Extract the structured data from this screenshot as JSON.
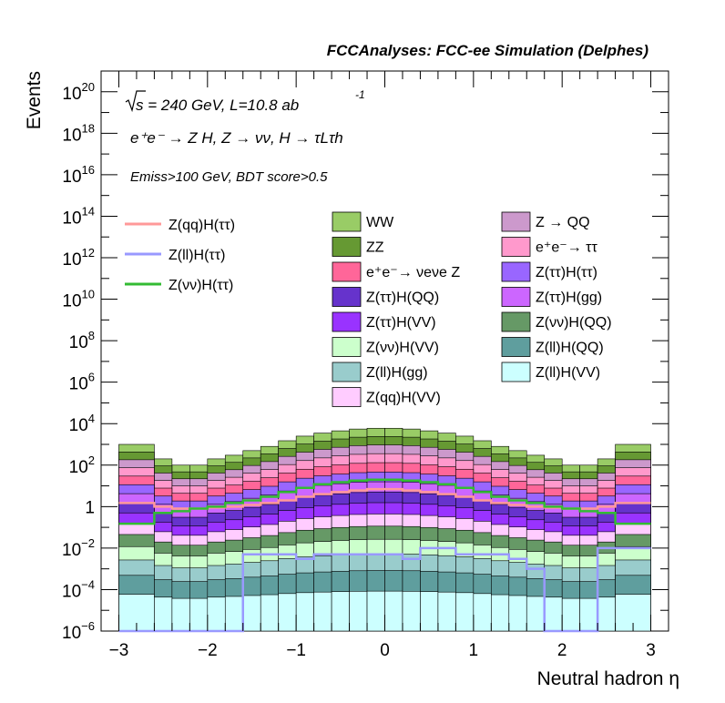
{
  "header": {
    "title": "FCCAnalyses: FCC-ee Simulation (Delphes)"
  },
  "annotations": {
    "sqrt_s": "s = 240 GeV, L=10.8 ab",
    "lumi_exp": "-1",
    "process": "e⁺e⁻ → Z H, Z → νν, H → τLτh",
    "selection": "Emiss>100 GeV, BDT score>0.5"
  },
  "chart_data": {
    "type": "histogram-stacked-log",
    "xlabel": "Neutral hadron η",
    "ylabel": "Events",
    "xlim": [
      -3.2,
      3.2
    ],
    "ylim": [
      1e-06,
      1e+21
    ],
    "log_y": true,
    "bin_edges": [
      -3.0,
      -2.6,
      -2.4,
      -2.2,
      -2.0,
      -1.8,
      -1.6,
      -1.4,
      -1.2,
      -1.0,
      -0.8,
      -0.6,
      -0.4,
      -0.2,
      0.0,
      0.2,
      0.4,
      0.6,
      0.8,
      1.0,
      1.2,
      1.4,
      1.6,
      1.8,
      2.0,
      2.2,
      2.4,
      2.6,
      3.0
    ],
    "x_ticks": [
      -3,
      -2,
      -1,
      0,
      1,
      2,
      3
    ],
    "y_tick_labels": [
      "10^-6",
      "10^-4",
      "10^-2",
      "1",
      "10^2",
      "10^4",
      "10^6",
      "10^8",
      "10^10",
      "10^12",
      "10^14",
      "10^16",
      "10^18",
      "10^20"
    ],
    "stack_bottom_to_top": [
      {
        "name": "Z(ll)H(VV)",
        "color": "#ccffff",
        "approx_level": 1e-06,
        "bin_totals": [
          0.01,
          0.01,
          0.01,
          0.01,
          0.01,
          0.01,
          0.01,
          0.01,
          0.01,
          0.01,
          0.01,
          0.01,
          0.01,
          0.01,
          0.01,
          0.01,
          0.01,
          0.01,
          0.01,
          0.01,
          0.01,
          0.01,
          0.01,
          0.01,
          0.01,
          0.01,
          0.01,
          0.01
        ]
      },
      {
        "name": "Z(ll)H(QQ)",
        "color": "#5f9e9e",
        "approx_level": 1e-06
      },
      {
        "name": "Z(ll)H(gg)",
        "color": "#99cccc",
        "approx_level": 1e-06
      },
      {
        "name": "Z(νν)H(VV)",
        "color": "#ccffcc",
        "approx_level": 0.001
      },
      {
        "name": "Z(νν)H(QQ)",
        "color": "#669966",
        "approx_level": 0.001
      },
      {
        "name": "Z(qq)H(VV)",
        "color": "#ffccff",
        "approx_level": 1e-06
      },
      {
        "name": "Z(ττ)H(VV)",
        "color": "#9933ff",
        "approx_level": 0.01
      },
      {
        "name": "Z(ττ)H(QQ)",
        "color": "#6633cc",
        "approx_level": 0.01
      },
      {
        "name": "Z(ττ)H(gg)",
        "color": "#cc66ff",
        "approx_level": 0.01
      },
      {
        "name": "Z(ττ)H(ττ)",
        "color": "#9966ff",
        "approx_level": 0.1
      },
      {
        "name": "e⁺e⁻→ νeνe Z",
        "color": "#ff6699",
        "approx_level": 10
      },
      {
        "name": "e⁺e⁻→ ττ",
        "color": "#ff99cc",
        "approx_level": 100
      },
      {
        "name": "Z → QQ",
        "color": "#cc99cc",
        "approx_level": 50
      },
      {
        "name": "ZZ",
        "color": "#669933",
        "approx_level": 300
      },
      {
        "name": "WW",
        "color": "#99cc66",
        "approx_level": 3000
      }
    ],
    "stack_totals": [
      1000,
      200,
      100,
      100,
      200,
      300,
      500,
      800,
      1500,
      2500,
      3500,
      4500,
      5500,
      6000,
      6000,
      5500,
      4500,
      3500,
      2500,
      1500,
      800,
      500,
      300,
      200,
      100,
      100,
      200,
      1000
    ],
    "lines": [
      {
        "name": "Z(qq)H(ττ)",
        "color": "#ff9999",
        "values": [
          1.5,
          1.0,
          0.8,
          0.8,
          0.9,
          1.0,
          1.2,
          1.5,
          2.0,
          3.0,
          4.0,
          5.0,
          6.0,
          7.0,
          7.0,
          6.0,
          5.0,
          4.0,
          3.0,
          2.0,
          1.5,
          1.2,
          1.0,
          0.9,
          0.8,
          0.8,
          1.0,
          1.5
        ]
      },
      {
        "name": "Z(ll)H(ττ)",
        "color": "#9999ff",
        "values": [
          0.0,
          0.0,
          0.0,
          0.0,
          0.0,
          0.0,
          0.005,
          0.005,
          0.005,
          0.003,
          0.005,
          0.005,
          0.005,
          0.005,
          0.005,
          0.003,
          0.01,
          0.01,
          0.005,
          0.005,
          0.005,
          0.003,
          0.001,
          0.0,
          0.0,
          0.0,
          0.01,
          0.01
        ]
      },
      {
        "name": "Z(νν)H(ττ)",
        "color": "#33bb33",
        "values": [
          0.15,
          0.5,
          0.6,
          0.8,
          1.0,
          1.5,
          2.0,
          3.0,
          5.0,
          8.0,
          12.0,
          15.0,
          18.0,
          20.0,
          20.0,
          18.0,
          15.0,
          12.0,
          8.0,
          5.0,
          3.0,
          2.0,
          1.5,
          1.0,
          0.8,
          0.6,
          0.5,
          0.15
        ]
      }
    ]
  }
}
